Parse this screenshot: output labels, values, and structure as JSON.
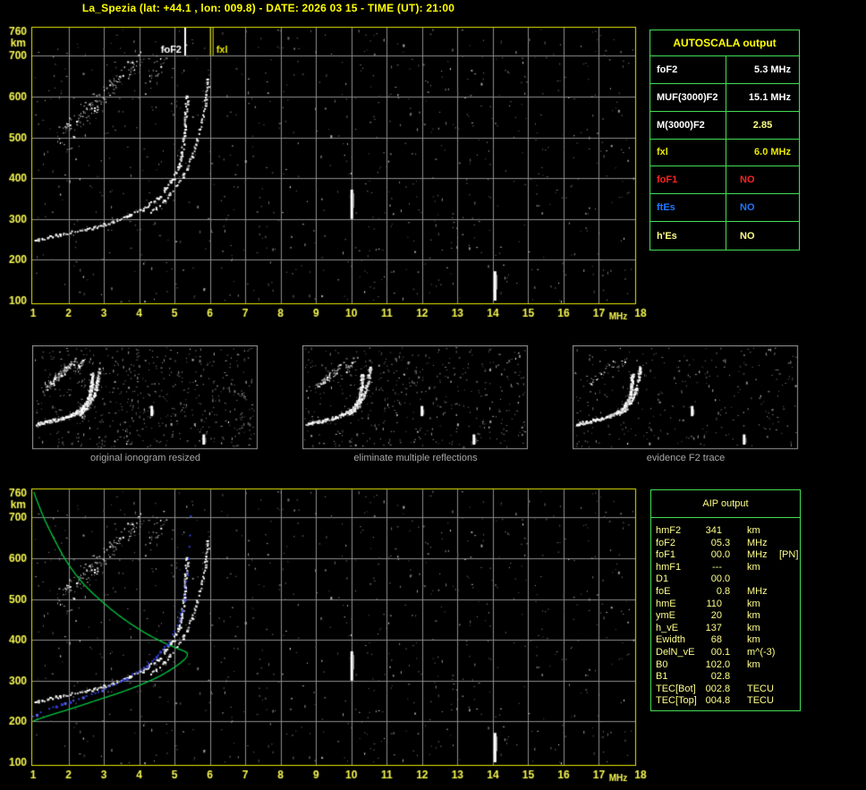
{
  "title": "La_Spezia (lat: +44.1 , lon: 009.8) - DATE: 2026 03 15 - TIME (UT): 21:00",
  "colors": {
    "title": "#ffff00",
    "axis_text": "#f5f550",
    "plot_border": "#e6e600",
    "grid": "#8c8c8c",
    "table_border": "#44dd55",
    "caption": "#a8a8a8",
    "thumb_border": "#999999",
    "green_profile": "#00c840",
    "blue_trace": "#2f3fd8",
    "white": "#ffffff",
    "pale_yellow": "#ffff88",
    "yellow": "#e8e800",
    "red": "#ff2222",
    "blue": "#2277ff",
    "aip_text": "#ffff88"
  },
  "axes": {
    "x_ticks": [
      "1",
      "2",
      "3",
      "4",
      "5",
      "6",
      "7",
      "8",
      "9",
      "10",
      "11",
      "12",
      "13",
      "14",
      "15",
      "16",
      "17",
      "18"
    ],
    "x_unit": "MHz",
    "y_ticks": [
      "760",
      "700",
      "600",
      "500",
      "400",
      "300",
      "200",
      "100"
    ],
    "y_unit": "km"
  },
  "top_plot": {
    "markers": [
      {
        "label": "foF2",
        "freq": 5.3,
        "color": "#ffffff"
      },
      {
        "label": "fxl",
        "freq": 6.0,
        "color": "#e8e800"
      }
    ]
  },
  "autoscala": {
    "header": "AUTOSCALA output",
    "rows": [
      {
        "label": "foF2",
        "value": "5.3 MHz",
        "label_color": "#ffffff",
        "value_color": "#ffffff"
      },
      {
        "label": "MUF(3000)F2",
        "value": "15.1 MHz",
        "label_color": "#ffffff",
        "value_color": "#ffffff"
      },
      {
        "label": "M(3000)F2",
        "value": "2.85",
        "label_color": "#ffffff",
        "value_color": "#ffff88"
      },
      {
        "label": "fxl",
        "value": "6.0 MHz",
        "label_color": "#e8e800",
        "value_color": "#e8e800"
      },
      {
        "label": "foF1",
        "value": "NO",
        "label_color": "#ff2222",
        "value_color": "#ff2222"
      },
      {
        "label": "ftEs",
        "value": "NO",
        "label_color": "#2277ff",
        "value_color": "#2277ff"
      },
      {
        "label": "h'Es",
        "value": "NO",
        "label_color": "#ffff88",
        "value_color": "#ffff88"
      }
    ]
  },
  "thumbnails": [
    {
      "caption": "original ionogram resized"
    },
    {
      "caption": "eliminate multiple reflections"
    },
    {
      "caption": "evidence F2 trace"
    }
  ],
  "aip": {
    "header": "AIP output",
    "rows": [
      {
        "label": "hmF2",
        "int": "341",
        "frac": "",
        "unit": "km",
        "extra": ""
      },
      {
        "label": "foF2",
        "int": "05",
        "frac": ".3",
        "unit": "MHz",
        "extra": ""
      },
      {
        "label": "foF1",
        "int": "00",
        "frac": ".0",
        "unit": "MHz",
        "extra": "[PN]"
      },
      {
        "label": "hmF1",
        "int": "---",
        "frac": "",
        "unit": "km",
        "extra": ""
      },
      {
        "label": "D1",
        "int": "00",
        "frac": ".0",
        "unit": "",
        "extra": ""
      },
      {
        "label": "foE",
        "int": "0",
        "frac": ".8",
        "unit": "MHz",
        "extra": ""
      },
      {
        "label": "hmE",
        "int": "110",
        "frac": "",
        "unit": "km",
        "extra": ""
      },
      {
        "label": "ymE",
        "int": "20",
        "frac": "",
        "unit": "km",
        "extra": ""
      },
      {
        "label": "h_vE",
        "int": "137",
        "frac": "",
        "unit": "km",
        "extra": ""
      },
      {
        "label": "Ewidth",
        "int": "68",
        "frac": "",
        "unit": "km",
        "extra": ""
      },
      {
        "label": "DelN_vE",
        "int": "00",
        "frac": ".1",
        "unit": "m^(-3)",
        "extra": ""
      },
      {
        "label": "B0",
        "int": "102",
        "frac": ".0",
        "unit": "km",
        "extra": ""
      },
      {
        "label": "B1",
        "int": "02",
        "frac": ".8",
        "unit": "",
        "extra": ""
      },
      {
        "label": "TEC[Bot]",
        "int": "002",
        "frac": ".8",
        "unit": "TECU",
        "extra": ""
      },
      {
        "label": "TEC[Top]",
        "int": "004",
        "frac": ".8",
        "unit": "TECU",
        "extra": ""
      }
    ]
  },
  "chart_data": {
    "type": "scatter",
    "title": "ionogram (virtual height vs sounding frequency)",
    "xlabel": "MHz",
    "ylabel": "km",
    "xlim": [
      1,
      18
    ],
    "ylim": [
      100,
      760
    ],
    "grid": true,
    "markers": [
      {
        "label": "foF2",
        "freq_MHz": 5.3
      },
      {
        "label": "fxl",
        "freq_MHz": 6.0
      }
    ],
    "o_trace": [
      [
        1.05,
        248
      ],
      [
        1.6,
        260
      ],
      [
        2.2,
        271
      ],
      [
        2.8,
        283
      ],
      [
        3.3,
        296
      ],
      [
        3.8,
        313
      ],
      [
        4.2,
        333
      ],
      [
        4.6,
        362
      ],
      [
        4.9,
        397
      ],
      [
        5.1,
        432
      ],
      [
        5.2,
        472
      ],
      [
        5.27,
        515
      ],
      [
        5.3,
        558
      ],
      [
        5.33,
        600
      ]
    ],
    "x_trace": [
      [
        4.3,
        318
      ],
      [
        4.7,
        346
      ],
      [
        5.0,
        378
      ],
      [
        5.3,
        420
      ],
      [
        5.5,
        462
      ],
      [
        5.65,
        505
      ],
      [
        5.78,
        552
      ],
      [
        5.88,
        608
      ],
      [
        5.93,
        648
      ]
    ],
    "second_hop": {
      "from": [
        1.75,
        500
      ],
      "to": [
        4.0,
        690
      ]
    },
    "second_hop_arm": {
      "from": [
        4.1,
        628
      ],
      "to": [
        4.8,
        700
      ]
    },
    "interference_streaks": [
      {
        "freq_MHz": 10.0,
        "km_range": [
          300,
          372
        ]
      },
      {
        "freq_MHz": 14.05,
        "km_range": [
          100,
          172
        ]
      }
    ],
    "green_profile": [
      [
        1.02,
        762
      ],
      [
        1.3,
        700
      ],
      [
        1.65,
        638
      ],
      [
        2.0,
        585
      ],
      [
        2.45,
        535
      ],
      [
        3.0,
        490
      ],
      [
        3.55,
        452
      ],
      [
        4.15,
        418
      ],
      [
        4.65,
        395
      ],
      [
        5.05,
        380
      ],
      [
        5.28,
        372
      ],
      [
        5.36,
        366
      ],
      [
        5.32,
        356
      ],
      [
        5.2,
        346
      ],
      [
        5.0,
        333
      ],
      [
        4.6,
        312
      ],
      [
        4.1,
        292
      ],
      [
        3.5,
        272
      ],
      [
        2.8,
        252
      ],
      [
        2.1,
        232
      ],
      [
        1.5,
        216
      ],
      [
        1.0,
        201
      ]
    ],
    "blue_trace": [
      [
        1.0,
        214
      ],
      [
        1.5,
        232
      ],
      [
        2.1,
        250
      ],
      [
        2.7,
        268
      ],
      [
        3.2,
        287
      ],
      [
        3.7,
        308
      ],
      [
        4.1,
        330
      ],
      [
        4.45,
        355
      ],
      [
        4.75,
        385
      ],
      [
        4.95,
        412
      ],
      [
        5.1,
        440
      ],
      [
        5.2,
        468
      ],
      [
        5.27,
        498
      ],
      [
        5.32,
        528
      ],
      [
        5.36,
        556
      ],
      [
        5.38,
        575
      ]
    ],
    "blue_dots_upper": [
      [
        5.4,
        598
      ],
      [
        5.42,
        628
      ],
      [
        5.44,
        656
      ],
      [
        5.46,
        703
      ]
    ],
    "scaled_values": {
      "foF2_MHz": 5.3,
      "fxI_MHz": 6.0,
      "MUF3000F2_MHz": 15.1,
      "M3000F2": 2.85,
      "hmF2_km": 341
    }
  }
}
